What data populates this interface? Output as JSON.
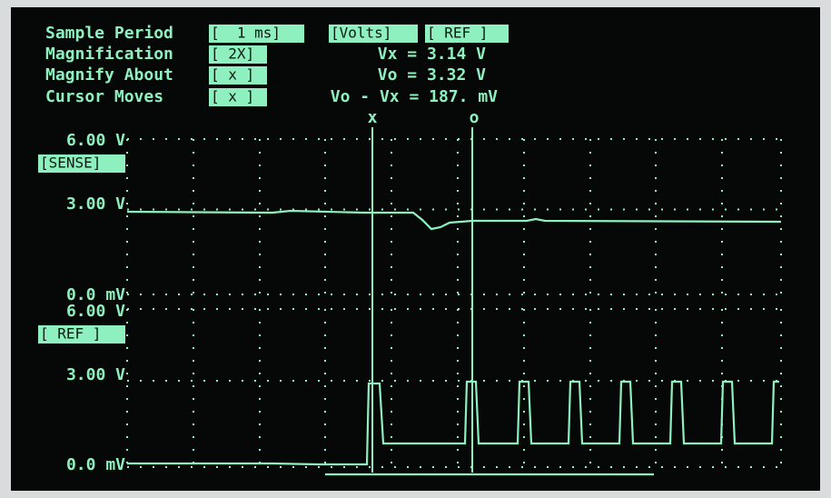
{
  "header": {
    "rows": [
      {
        "label": "Sample Period",
        "button": "[  1 ms]"
      },
      {
        "label": "Magnification",
        "button": "[ 2X]"
      },
      {
        "label": "Magnify About",
        "button": "[ x ]"
      },
      {
        "label": "Cursor Moves",
        "button": "[ x ]"
      }
    ],
    "mode_buttons": [
      "[Volts]",
      "[ REF ]"
    ],
    "readouts": [
      "Vx = 3.14 V",
      "Vo = 3.32 V",
      "Vo - Vx = 187. mV"
    ]
  },
  "cursors": [
    "x",
    "o"
  ],
  "panels": [
    {
      "top": "6.00 V",
      "channel": "[SENSE]",
      "mid": "3.00 V",
      "bottom": "0.0 mV"
    },
    {
      "top": "6.00 V",
      "channel": "[ REF ]",
      "mid": "3.00 V",
      "bottom": "0.0 mV"
    }
  ]
}
